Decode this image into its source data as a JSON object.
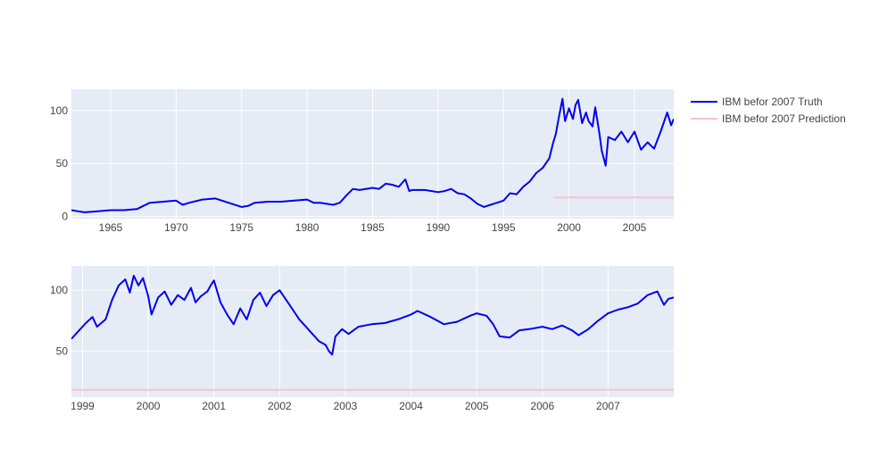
{
  "colors": {
    "plot_background": "#e5ecf6",
    "grid": "#ffffff",
    "truth": "#0000ee",
    "prediction": "#ffc0cb",
    "tick_text": "#444444"
  },
  "legend": {
    "placement": "top-right",
    "items": [
      {
        "label": "IBM befor 2007 Truth",
        "color": "#0000ee"
      },
      {
        "label": "IBM befor 2007 Prediction",
        "color": "#ffc0cb"
      }
    ]
  },
  "chart_data": [
    {
      "type": "line",
      "title": "",
      "xlabel": "",
      "ylabel": "",
      "x_ticks": [
        "1965",
        "1970",
        "1975",
        "1980",
        "1985",
        "1990",
        "1995",
        "2000",
        "2005"
      ],
      "y_ticks": [
        "0",
        "50",
        "100"
      ],
      "xlim": [
        1962.0,
        2008.0
      ],
      "ylim": [
        -2,
        120
      ],
      "grid": true,
      "series": [
        {
          "name": "IBM befor 2007 Truth",
          "color": "#0000ee",
          "points": [
            [
              1962.0,
              6
            ],
            [
              1962.5,
              5
            ],
            [
              1963.0,
              4
            ],
            [
              1964.0,
              5
            ],
            [
              1965.0,
              6
            ],
            [
              1966.0,
              6
            ],
            [
              1967.0,
              7
            ],
            [
              1967.5,
              10
            ],
            [
              1968.0,
              13
            ],
            [
              1969.0,
              14
            ],
            [
              1970.0,
              15
            ],
            [
              1970.5,
              11
            ],
            [
              1971.0,
              13
            ],
            [
              1972.0,
              16
            ],
            [
              1973.0,
              17
            ],
            [
              1974.0,
              13
            ],
            [
              1975.0,
              9
            ],
            [
              1975.5,
              10
            ],
            [
              1976.0,
              13
            ],
            [
              1977.0,
              14
            ],
            [
              1978.0,
              14
            ],
            [
              1979.0,
              15
            ],
            [
              1980.0,
              16
            ],
            [
              1980.5,
              13
            ],
            [
              1981.0,
              13
            ],
            [
              1982.0,
              11
            ],
            [
              1982.5,
              13
            ],
            [
              1983.0,
              20
            ],
            [
              1983.5,
              26
            ],
            [
              1984.0,
              25
            ],
            [
              1985.0,
              27
            ],
            [
              1985.5,
              26
            ],
            [
              1986.0,
              31
            ],
            [
              1986.5,
              30
            ],
            [
              1987.0,
              28
            ],
            [
              1987.5,
              35
            ],
            [
              1987.8,
              24
            ],
            [
              1988.0,
              25
            ],
            [
              1989.0,
              25
            ],
            [
              1990.0,
              23
            ],
            [
              1990.5,
              24
            ],
            [
              1991.0,
              26
            ],
            [
              1991.5,
              22
            ],
            [
              1992.0,
              21
            ],
            [
              1992.5,
              17
            ],
            [
              1993.0,
              12
            ],
            [
              1993.5,
              9
            ],
            [
              1994.0,
              11
            ],
            [
              1994.5,
              13
            ],
            [
              1995.0,
              15
            ],
            [
              1995.5,
              22
            ],
            [
              1996.0,
              21
            ],
            [
              1996.5,
              28
            ],
            [
              1997.0,
              33
            ],
            [
              1997.5,
              41
            ],
            [
              1998.0,
              46
            ],
            [
              1998.5,
              55
            ],
            [
              1998.8,
              70
            ],
            [
              1999.0,
              78
            ],
            [
              1999.2,
              92
            ],
            [
              1999.5,
              111
            ],
            [
              1999.7,
              90
            ],
            [
              2000.0,
              102
            ],
            [
              2000.3,
              92
            ],
            [
              2000.5,
              105
            ],
            [
              2000.7,
              110
            ],
            [
              2001.0,
              88
            ],
            [
              2001.3,
              98
            ],
            [
              2001.5,
              90
            ],
            [
              2001.8,
              85
            ],
            [
              2002.0,
              103
            ],
            [
              2002.3,
              80
            ],
            [
              2002.5,
              62
            ],
            [
              2002.8,
              48
            ],
            [
              2003.0,
              75
            ],
            [
              2003.5,
              72
            ],
            [
              2004.0,
              80
            ],
            [
              2004.5,
              70
            ],
            [
              2005.0,
              80
            ],
            [
              2005.5,
              63
            ],
            [
              2006.0,
              70
            ],
            [
              2006.5,
              64
            ],
            [
              2007.0,
              80
            ],
            [
              2007.5,
              98
            ],
            [
              2007.8,
              86
            ],
            [
              2008.0,
              92
            ]
          ]
        },
        {
          "name": "IBM befor 2007 Prediction",
          "color": "#ffc0cb",
          "points": [
            [
              1998.8,
              18
            ],
            [
              2008.0,
              18
            ]
          ]
        }
      ]
    },
    {
      "type": "line",
      "title": "",
      "xlabel": "",
      "ylabel": "",
      "x_ticks": [
        "1999",
        "2000",
        "2001",
        "2002",
        "2003",
        "2004",
        "2005",
        "2006",
        "2007"
      ],
      "y_ticks": [
        "50",
        "100"
      ],
      "xlim": [
        1998.83,
        2008.0
      ],
      "ylim": [
        12,
        120
      ],
      "grid": true,
      "series": [
        {
          "name": "IBM befor 2007 Truth",
          "color": "#0000ee",
          "points": [
            [
              1998.83,
              60
            ],
            [
              1998.95,
              67
            ],
            [
              1999.05,
              73
            ],
            [
              1999.15,
              78
            ],
            [
              1999.22,
              70
            ],
            [
              1999.35,
              76
            ],
            [
              1999.45,
              92
            ],
            [
              1999.55,
              104
            ],
            [
              1999.65,
              109
            ],
            [
              1999.72,
              98
            ],
            [
              1999.78,
              112
            ],
            [
              1999.85,
              104
            ],
            [
              1999.92,
              110
            ],
            [
              2000.0,
              95
            ],
            [
              2000.05,
              80
            ],
            [
              2000.15,
              94
            ],
            [
              2000.25,
              99
            ],
            [
              2000.35,
              88
            ],
            [
              2000.45,
              96
            ],
            [
              2000.55,
              92
            ],
            [
              2000.65,
              102
            ],
            [
              2000.72,
              90
            ],
            [
              2000.8,
              95
            ],
            [
              2000.9,
              99
            ],
            [
              2000.95,
              104
            ],
            [
              2001.0,
              108
            ],
            [
              2001.1,
              90
            ],
            [
              2001.2,
              80
            ],
            [
              2001.3,
              72
            ],
            [
              2001.4,
              85
            ],
            [
              2001.5,
              76
            ],
            [
              2001.6,
              92
            ],
            [
              2001.7,
              98
            ],
            [
              2001.8,
              87
            ],
            [
              2001.9,
              96
            ],
            [
              2002.0,
              100
            ],
            [
              2002.1,
              92
            ],
            [
              2002.2,
              84
            ],
            [
              2002.3,
              76
            ],
            [
              2002.4,
              70
            ],
            [
              2002.5,
              64
            ],
            [
              2002.6,
              58
            ],
            [
              2002.7,
              55
            ],
            [
              2002.75,
              50
            ],
            [
              2002.8,
              47
            ],
            [
              2002.85,
              62
            ],
            [
              2002.95,
              68
            ],
            [
              2003.05,
              64
            ],
            [
              2003.2,
              70
            ],
            [
              2003.4,
              72
            ],
            [
              2003.6,
              73
            ],
            [
              2003.8,
              76
            ],
            [
              2004.0,
              80
            ],
            [
              2004.1,
              83
            ],
            [
              2004.3,
              78
            ],
            [
              2004.5,
              72
            ],
            [
              2004.7,
              74
            ],
            [
              2004.9,
              79
            ],
            [
              2005.0,
              81
            ],
            [
              2005.15,
              79
            ],
            [
              2005.25,
              72
            ],
            [
              2005.35,
              62
            ],
            [
              2005.5,
              61
            ],
            [
              2005.65,
              67
            ],
            [
              2005.8,
              68
            ],
            [
              2006.0,
              70
            ],
            [
              2006.15,
              68
            ],
            [
              2006.3,
              71
            ],
            [
              2006.45,
              67
            ],
            [
              2006.55,
              63
            ],
            [
              2006.7,
              68
            ],
            [
              2006.85,
              75
            ],
            [
              2007.0,
              81
            ],
            [
              2007.15,
              84
            ],
            [
              2007.3,
              86
            ],
            [
              2007.45,
              89
            ],
            [
              2007.6,
              96
            ],
            [
              2007.75,
              99
            ],
            [
              2007.85,
              88
            ],
            [
              2007.92,
              93
            ],
            [
              2008.0,
              94
            ]
          ]
        },
        {
          "name": "IBM befor 2007 Prediction",
          "color": "#ffc0cb",
          "points": [
            [
              1998.83,
              18
            ],
            [
              2008.0,
              18
            ]
          ]
        }
      ]
    }
  ]
}
